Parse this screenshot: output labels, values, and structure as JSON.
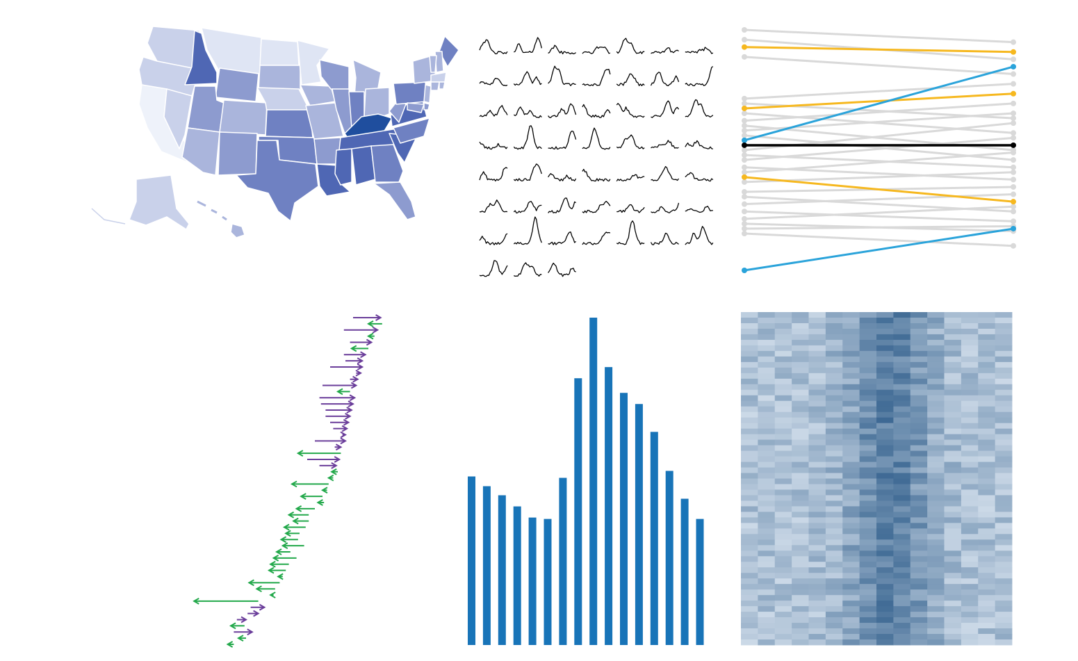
{
  "colors": {
    "map_scale": [
      "#eef2fa",
      "#dfe5f4",
      "#c9d1ea",
      "#aab5dc",
      "#8d9bcf",
      "#6f81c2",
      "#4f67b4",
      "#1f4e9e"
    ],
    "sparkline": "#000000",
    "slope_gray": "#d9d9d9",
    "slope_orange": "#f6b81f",
    "slope_blue": "#2aa3da",
    "slope_black": "#000000",
    "arrow_purple": "#6a3d9a",
    "arrow_green": "#22a84a",
    "bar": "#1874b8",
    "heat_low": "#e6eef7",
    "heat_high": "#1d4f80"
  },
  "chart_data": [
    {
      "type": "choropleth",
      "region": "United States",
      "levels": {
        "WA": 2,
        "OR": 2,
        "CA": 0,
        "NV": 2,
        "ID": 6,
        "MT": 1,
        "WY": 4,
        "UT": 4,
        "AZ": 3,
        "CO": 3,
        "NM": 4,
        "ND": 1,
        "SD": 3,
        "NE": 2,
        "KS": 5,
        "OK": 5,
        "TX": 5,
        "MN": 1,
        "IA": 3,
        "MO": 3,
        "AR": 4,
        "LA": 6,
        "WI": 4,
        "IL": 4,
        "MI": 3,
        "IN": 5,
        "OH": 3,
        "KY": 7,
        "TN": 6,
        "MS": 6,
        "AL": 6,
        "GA": 5,
        "FL": 4,
        "SC": 6,
        "NC": 5,
        "VA": 6,
        "WV": 4,
        "PA": 5,
        "NY": 3,
        "ME": 5,
        "NH": 3,
        "VT": 3,
        "MA": 2,
        "CT": 3,
        "RI": 3,
        "NJ": 3,
        "DE": 4,
        "MD": 4,
        "AK": 2,
        "HI": 3
      }
    },
    {
      "type": "line",
      "layout": "small-multiples",
      "panels": 52,
      "columns": 7
    },
    {
      "type": "slope",
      "series": [
        {
          "start": 10.0,
          "end": 9.5,
          "highlight": "gray"
        },
        {
          "start": 9.6,
          "end": 8.8,
          "highlight": "gray"
        },
        {
          "start": 9.3,
          "end": 9.1,
          "highlight": "orange"
        },
        {
          "start": 8.9,
          "end": 8.2,
          "highlight": "gray"
        },
        {
          "start": 7.2,
          "end": 7.8,
          "highlight": "gray"
        },
        {
          "start": 7.0,
          "end": 6.4,
          "highlight": "gray"
        },
        {
          "start": 6.8,
          "end": 7.4,
          "highlight": "orange"
        },
        {
          "start": 6.6,
          "end": 5.8,
          "highlight": "gray"
        },
        {
          "start": 6.3,
          "end": 7.0,
          "highlight": "gray"
        },
        {
          "start": 6.1,
          "end": 5.1,
          "highlight": "gray"
        },
        {
          "start": 5.9,
          "end": 6.6,
          "highlight": "gray"
        },
        {
          "start": 5.7,
          "end": 4.7,
          "highlight": "gray"
        },
        {
          "start": 5.5,
          "end": 8.5,
          "highlight": "blue"
        },
        {
          "start": 5.3,
          "end": 5.3,
          "highlight": "black"
        },
        {
          "start": 5.1,
          "end": 6.2,
          "highlight": "gray"
        },
        {
          "start": 4.9,
          "end": 4.4,
          "highlight": "gray"
        },
        {
          "start": 4.7,
          "end": 5.6,
          "highlight": "gray"
        },
        {
          "start": 4.4,
          "end": 3.9,
          "highlight": "gray"
        },
        {
          "start": 4.2,
          "end": 5.0,
          "highlight": "gray"
        },
        {
          "start": 4.0,
          "end": 3.0,
          "highlight": "orange"
        },
        {
          "start": 3.8,
          "end": 4.2,
          "highlight": "gray"
        },
        {
          "start": 3.4,
          "end": 3.6,
          "highlight": "gray"
        },
        {
          "start": 3.2,
          "end": 2.6,
          "highlight": "gray"
        },
        {
          "start": 2.9,
          "end": 3.3,
          "highlight": "gray"
        },
        {
          "start": 2.6,
          "end": 2.2,
          "highlight": "gray"
        },
        {
          "start": 2.3,
          "end": 2.8,
          "highlight": "gray"
        },
        {
          "start": 2.1,
          "end": 1.8,
          "highlight": "gray"
        },
        {
          "start": 1.9,
          "end": 2.0,
          "highlight": "gray"
        },
        {
          "start": 1.7,
          "end": 1.2,
          "highlight": "gray"
        },
        {
          "start": 0.2,
          "end": 1.9,
          "highlight": "blue"
        }
      ]
    },
    {
      "type": "arrow",
      "series": [
        {
          "from": 40,
          "to": 58
        },
        {
          "from": 59,
          "to": 50
        },
        {
          "from": 34,
          "to": 56
        },
        {
          "from": 54,
          "to": 50
        },
        {
          "from": 38,
          "to": 52
        },
        {
          "from": 50,
          "to": 39
        },
        {
          "from": 34,
          "to": 48
        },
        {
          "from": 35,
          "to": 46
        },
        {
          "from": 25,
          "to": 46
        },
        {
          "from": 42,
          "to": 45
        },
        {
          "from": 38,
          "to": 43
        },
        {
          "from": 20,
          "to": 42
        },
        {
          "from": 38,
          "to": 30
        },
        {
          "from": 18,
          "to": 41
        },
        {
          "from": 19,
          "to": 40
        },
        {
          "from": 22,
          "to": 39
        },
        {
          "from": 22,
          "to": 38
        },
        {
          "from": 25,
          "to": 37
        },
        {
          "from": 27,
          "to": 36
        },
        {
          "from": 33,
          "to": 35
        },
        {
          "from": 15,
          "to": 35
        },
        {
          "from": 28,
          "to": 32
        },
        {
          "from": 32,
          "to": 4
        },
        {
          "from": 10,
          "to": 31
        },
        {
          "from": 18,
          "to": 29
        },
        {
          "from": 30,
          "to": 26
        },
        {
          "from": 27,
          "to": 24
        },
        {
          "from": 24,
          "to": 0
        },
        {
          "from": 23,
          "to": 20
        },
        {
          "from": 20,
          "to": 6
        },
        {
          "from": 21,
          "to": 17
        },
        {
          "from": 15,
          "to": 3
        },
        {
          "from": 11,
          "to": -2
        },
        {
          "from": 11,
          "to": 1
        },
        {
          "from": 9,
          "to": -5
        },
        {
          "from": 5,
          "to": -4
        },
        {
          "from": 4,
          "to": -7
        },
        {
          "from": 8,
          "to": -6
        },
        {
          "from": -1,
          "to": -10
        },
        {
          "from": 3,
          "to": -12
        },
        {
          "from": -2,
          "to": -14
        },
        {
          "from": -4,
          "to": -15
        },
        {
          "from": -6,
          "to": -9
        },
        {
          "from": -8,
          "to": -28
        },
        {
          "from": -11,
          "to": -23
        },
        {
          "from": -12,
          "to": -14
        },
        {
          "from": -22,
          "to": -64
        },
        {
          "from": -27,
          "to": -18
        },
        {
          "from": -29,
          "to": -22
        },
        {
          "from": -36,
          "to": -30
        },
        {
          "from": -31,
          "to": -40
        },
        {
          "from": -38,
          "to": -26
        },
        {
          "from": -30,
          "to": -35
        },
        {
          "from": -38,
          "to": -42
        }
      ]
    },
    {
      "type": "bar",
      "values": [
        242,
        228,
        215,
        199,
        183,
        181,
        240,
        383,
        470,
        399,
        362,
        346,
        306,
        250,
        210,
        181
      ],
      "ylim": [
        0,
        470
      ]
    },
    {
      "type": "heatmap",
      "rows": 60,
      "columns": 16
    }
  ]
}
